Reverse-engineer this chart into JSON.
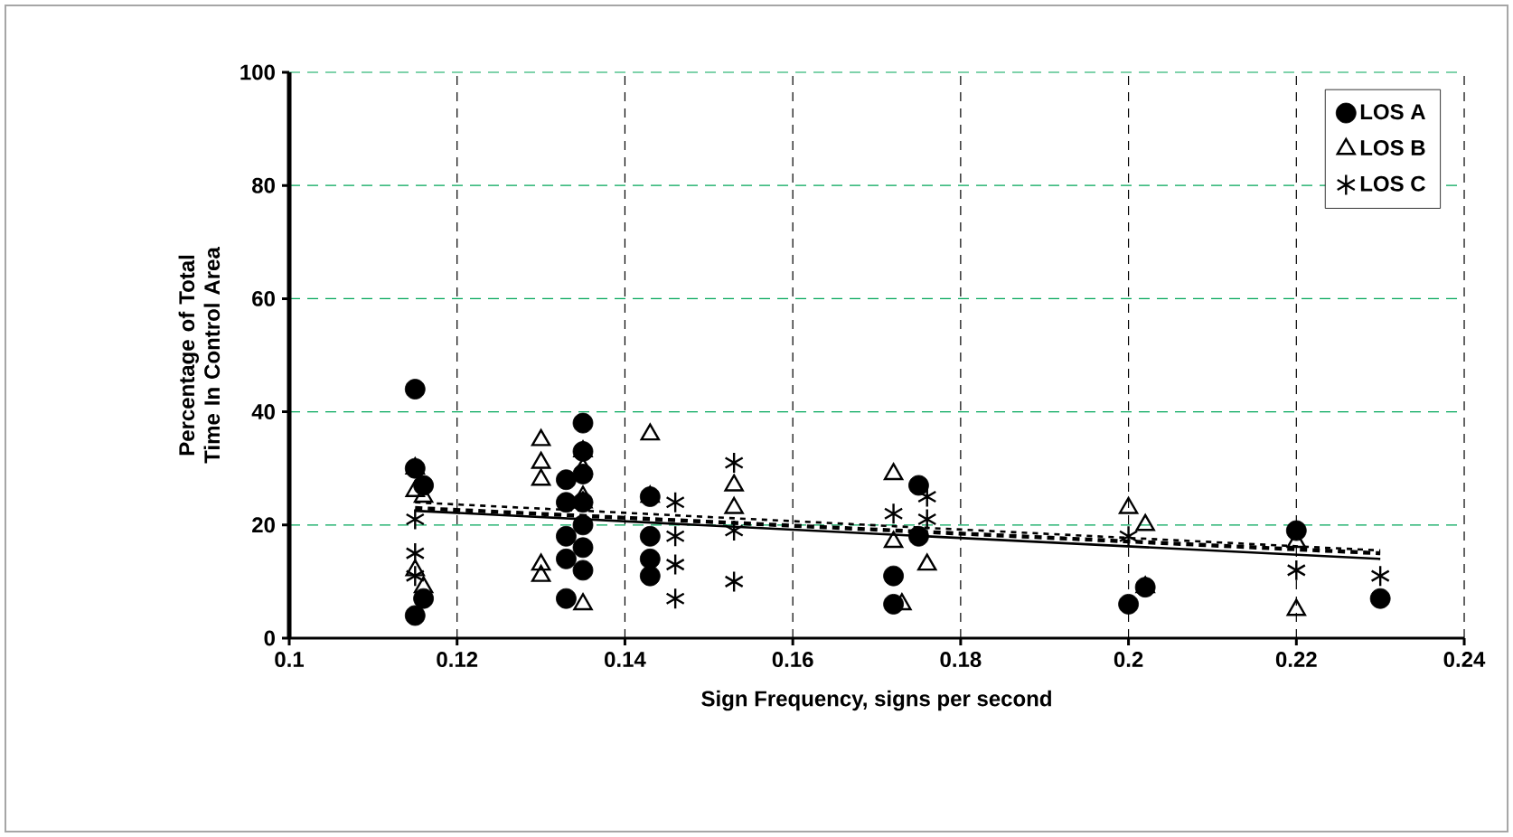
{
  "chart_data": {
    "type": "scatter",
    "xlabel": "Sign Frequency, signs per second",
    "ylabel": "Percentage of Total Time In Control Area",
    "xlim": [
      0.1,
      0.24
    ],
    "ylim": [
      0,
      100
    ],
    "xticks": [
      0.1,
      0.12,
      0.14,
      0.16,
      0.18,
      0.2,
      0.22,
      0.24
    ],
    "yticks": [
      0,
      20,
      40,
      60,
      80,
      100
    ],
    "grid": true,
    "legend": "top right",
    "series": [
      {
        "name": "LOS A",
        "color": "#000000",
        "marker": "circle",
        "x": [
          0.115,
          0.115,
          0.115,
          0.116,
          0.116,
          0.133,
          0.133,
          0.133,
          0.133,
          0.133,
          0.135,
          0.135,
          0.135,
          0.135,
          0.135,
          0.135,
          0.135,
          0.143,
          0.143,
          0.143,
          0.143,
          0.172,
          0.172,
          0.175,
          0.175,
          0.2,
          0.202,
          0.22,
          0.23
        ],
        "values": [
          44,
          30,
          4,
          27,
          7,
          28,
          24,
          18,
          14,
          7,
          38,
          33,
          29,
          24,
          20,
          16,
          12,
          25,
          18,
          14,
          11,
          11,
          6,
          27,
          18,
          6,
          9,
          19,
          7
        ]
      },
      {
        "name": "LOS B",
        "color": "#000000",
        "marker": "triangle",
        "x": [
          0.115,
          0.115,
          0.115,
          0.116,
          0.116,
          0.13,
          0.13,
          0.13,
          0.13,
          0.13,
          0.135,
          0.135,
          0.135,
          0.135,
          0.135,
          0.143,
          0.143,
          0.153,
          0.153,
          0.172,
          0.172,
          0.173,
          0.176,
          0.2,
          0.202,
          0.202,
          0.22,
          0.22
        ],
        "values": [
          30,
          26,
          12,
          25,
          9,
          35,
          31,
          28,
          13,
          11,
          33,
          30,
          25,
          24,
          6,
          36,
          25,
          27,
          23,
          29,
          17,
          6,
          13,
          23,
          20,
          9,
          17,
          5
        ]
      },
      {
        "name": "LOS C",
        "color": "#000000",
        "marker": "cross",
        "x": [
          0.115,
          0.115,
          0.115,
          0.146,
          0.146,
          0.146,
          0.146,
          0.153,
          0.153,
          0.153,
          0.172,
          0.176,
          0.176,
          0.2,
          0.22,
          0.23
        ],
        "values": [
          21,
          15,
          11,
          24,
          18,
          13,
          7,
          31,
          19,
          10,
          22,
          25,
          21,
          18,
          12,
          11
        ]
      },
      {
        "type": "line",
        "color": "#000000",
        "marker": "none",
        "line_style": "solid",
        "x": [
          0.115,
          0.23
        ],
        "values": [
          22.5,
          14
        ]
      },
      {
        "type": "line",
        "color": "#000000",
        "marker": "none",
        "line_style": "dashed",
        "x": [
          0.115,
          0.23
        ],
        "values": [
          24,
          15.5
        ]
      },
      {
        "type": "line",
        "color": "#000000",
        "marker": "none",
        "line_style": "dotted",
        "x": [
          0.115,
          0.23
        ],
        "values": [
          23,
          15
        ]
      }
    ]
  }
}
